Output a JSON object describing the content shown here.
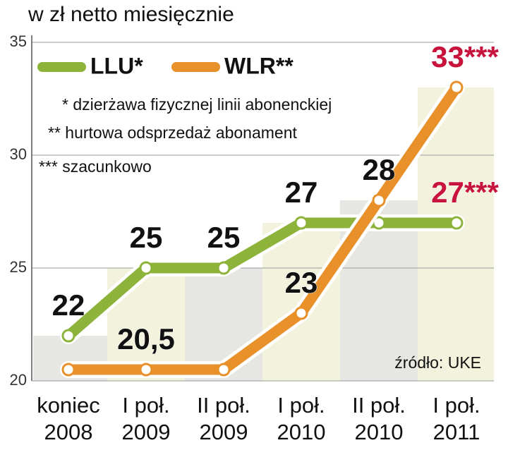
{
  "chart_data": {
    "type": "line",
    "title": "w zł netto miesięcznie",
    "categories": [
      "koniec\n2008",
      "I poł.\n2009",
      "II poł.\n2009",
      "I poł.\n2010",
      "II poł.\n2010",
      "I poł.\n2011"
    ],
    "series": [
      {
        "name": "LLU*",
        "color": "#8db33a",
        "values": [
          22,
          25,
          25,
          27,
          27,
          27
        ],
        "value_labels": [
          "22",
          "25",
          "25",
          "27",
          null,
          "27***"
        ]
      },
      {
        "name": "WLR**",
        "color": "#e8902a",
        "values": [
          20.5,
          20.5,
          20.5,
          23,
          28,
          33
        ],
        "value_labels": [
          null,
          "20,5",
          null,
          "23",
          "28",
          "33***"
        ]
      }
    ],
    "ylim": [
      20,
      35
    ],
    "yticks": [
      20,
      25,
      30,
      35
    ],
    "grid": true,
    "annotations": [
      "* dzierżawa fizycznej linii abonenckiej",
      "** hurtowa odsprzedaż abonament",
      "*** szacunkowo"
    ],
    "source": "źródło: UKE"
  }
}
